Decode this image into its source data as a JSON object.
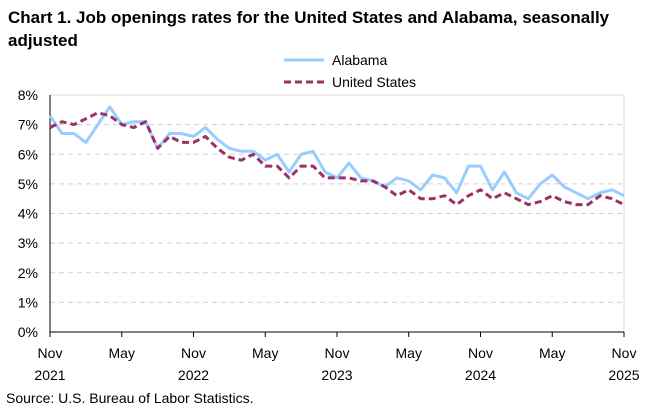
{
  "chart_data": {
    "type": "line",
    "title": "Chart 1. Job openings rates for the United States and Alabama, seasonally adjusted",
    "source": "Source: U.S. Bureau of Labor Statistics.",
    "x_ticks": [
      {
        "month": "Nov",
        "year": "2021",
        "index": 0
      },
      {
        "month": "May",
        "year": "",
        "index": 6
      },
      {
        "month": "Nov",
        "year": "2022",
        "index": 12
      },
      {
        "month": "May",
        "year": "",
        "index": 18
      },
      {
        "month": "Nov",
        "year": "2023",
        "index": 24
      },
      {
        "month": "May",
        "year": "",
        "index": 30
      },
      {
        "month": "Nov",
        "year": "2024",
        "index": 36
      },
      {
        "month": "May",
        "year": "",
        "index": 42
      },
      {
        "month": "Nov",
        "year": "2025",
        "index": 48
      }
    ],
    "x_range": [
      "Nov 2021",
      "Nov 2025"
    ],
    "ylim": [
      0,
      8
    ],
    "y_ticks": [
      "0%",
      "1%",
      "2%",
      "3%",
      "4%",
      "5%",
      "6%",
      "7%",
      "8%"
    ],
    "grid": "horizontal dashed",
    "legend": "top-center",
    "series": [
      {
        "name": "Alabama",
        "color": "#99CCFF",
        "style": "solid",
        "values": [
          7.3,
          6.7,
          6.7,
          6.4,
          7.0,
          7.6,
          7.0,
          7.1,
          7.1,
          6.2,
          6.7,
          6.7,
          6.6,
          6.9,
          6.5,
          6.2,
          6.1,
          6.1,
          5.8,
          6.0,
          5.4,
          6.0,
          6.1,
          5.4,
          5.2,
          5.7,
          5.2,
          5.1,
          4.9,
          5.2,
          5.1,
          4.8,
          5.3,
          5.2,
          4.7,
          5.6,
          5.6,
          4.8,
          5.4,
          4.7,
          4.5,
          5.0,
          5.3,
          4.9,
          4.7,
          4.5,
          4.7,
          4.8,
          4.6
        ]
      },
      {
        "name": "United States",
        "color": "#993366",
        "style": "dashed",
        "values": [
          6.9,
          7.1,
          7.0,
          7.2,
          7.4,
          7.3,
          7.0,
          6.9,
          7.1,
          6.2,
          6.6,
          6.4,
          6.4,
          6.6,
          6.2,
          5.9,
          5.8,
          6.0,
          5.6,
          5.6,
          5.2,
          5.6,
          5.6,
          5.2,
          5.2,
          5.2,
          5.1,
          5.1,
          4.9,
          4.6,
          4.8,
          4.5,
          4.5,
          4.6,
          4.3,
          4.6,
          4.8,
          4.5,
          4.7,
          4.5,
          4.3,
          4.4,
          4.6,
          4.4,
          4.3,
          4.3,
          4.6,
          4.5,
          4.3
        ]
      }
    ]
  }
}
